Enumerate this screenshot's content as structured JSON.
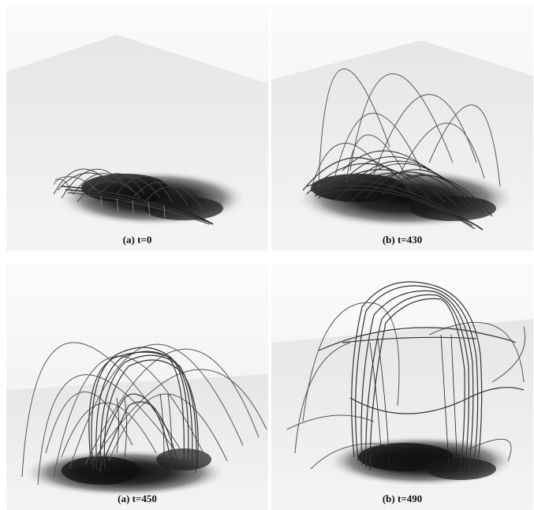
{
  "panels": [
    {
      "caption": "(a) t=0"
    },
    {
      "caption": "(b) t=430"
    },
    {
      "caption": "(a) t=450"
    },
    {
      "caption": "(b) t=490"
    }
  ]
}
